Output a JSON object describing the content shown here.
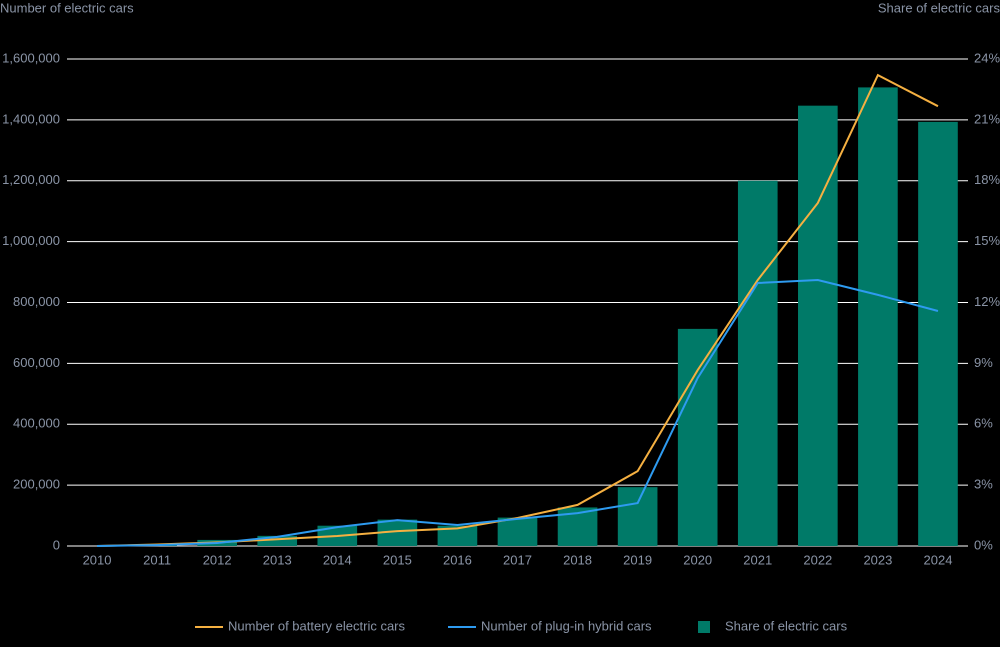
{
  "chart_data": {
    "type": "bar",
    "y_label": "Number of electric cars",
    "y2_label": "Share of electric cars",
    "categories": [
      "2010",
      "2011",
      "2012",
      "2013",
      "2014",
      "2015",
      "2016",
      "2017",
      "2018",
      "2019",
      "2020",
      "2021",
      "2022",
      "2023",
      "2024"
    ],
    "series": [
      {
        "name": "Number of battery electric cars",
        "type": "line",
        "color": "#f5b041",
        "values": [
          0,
          5000,
          12000,
          22000,
          33000,
          49000,
          58000,
          92000,
          135000,
          246000,
          578000,
          874000,
          1127000,
          1547000,
          1445000
        ]
      },
      {
        "name": "Number of plug-in hybrid cars",
        "type": "line",
        "color": "#2e9bf0",
        "values": [
          0,
          3000,
          10000,
          30000,
          62000,
          85000,
          69000,
          89000,
          108000,
          141000,
          552000,
          864000,
          874000,
          825000,
          772000
        ]
      },
      {
        "name": "Share of electric cars",
        "type": "bar",
        "axis": "y2",
        "color": "#007a68",
        "values": [
          0,
          0.1,
          0.3,
          0.5,
          1.0,
          1.3,
          1.0,
          1.4,
          1.9,
          2.9,
          10.7,
          18.0,
          21.7,
          22.6,
          20.9
        ]
      }
    ],
    "ylim": [
      0,
      1600000
    ],
    "yticks": [
      0,
      {
        "value": 200000,
        "label": "200,000"
      },
      {
        "value": 400000,
        "label": "400,000"
      },
      {
        "value": 600000,
        "label": "600,000"
      },
      {
        "value": 800000,
        "label": "800,000"
      },
      {
        "value": 1000000,
        "label": "1,000,000"
      },
      {
        "value": 1200000,
        "label": "1,200,000"
      },
      {
        "value": 1400000,
        "label": "1,400,000"
      },
      {
        "value": 1600000,
        "label": "1,600,000"
      }
    ],
    "y2lim": [
      0,
      24
    ],
    "y2ticks": [
      {
        "value": 0,
        "label": "0%"
      },
      {
        "value": 3,
        "label": "3%"
      },
      {
        "value": 6,
        "label": "6%"
      },
      {
        "value": 9,
        "label": "9%"
      },
      {
        "value": 12,
        "label": "12%"
      },
      {
        "value": 15,
        "label": "15%"
      },
      {
        "value": 18,
        "label": "18%"
      },
      {
        "value": 21,
        "label": "21%"
      },
      {
        "value": 24,
        "label": "24%"
      }
    ],
    "grid": true
  }
}
